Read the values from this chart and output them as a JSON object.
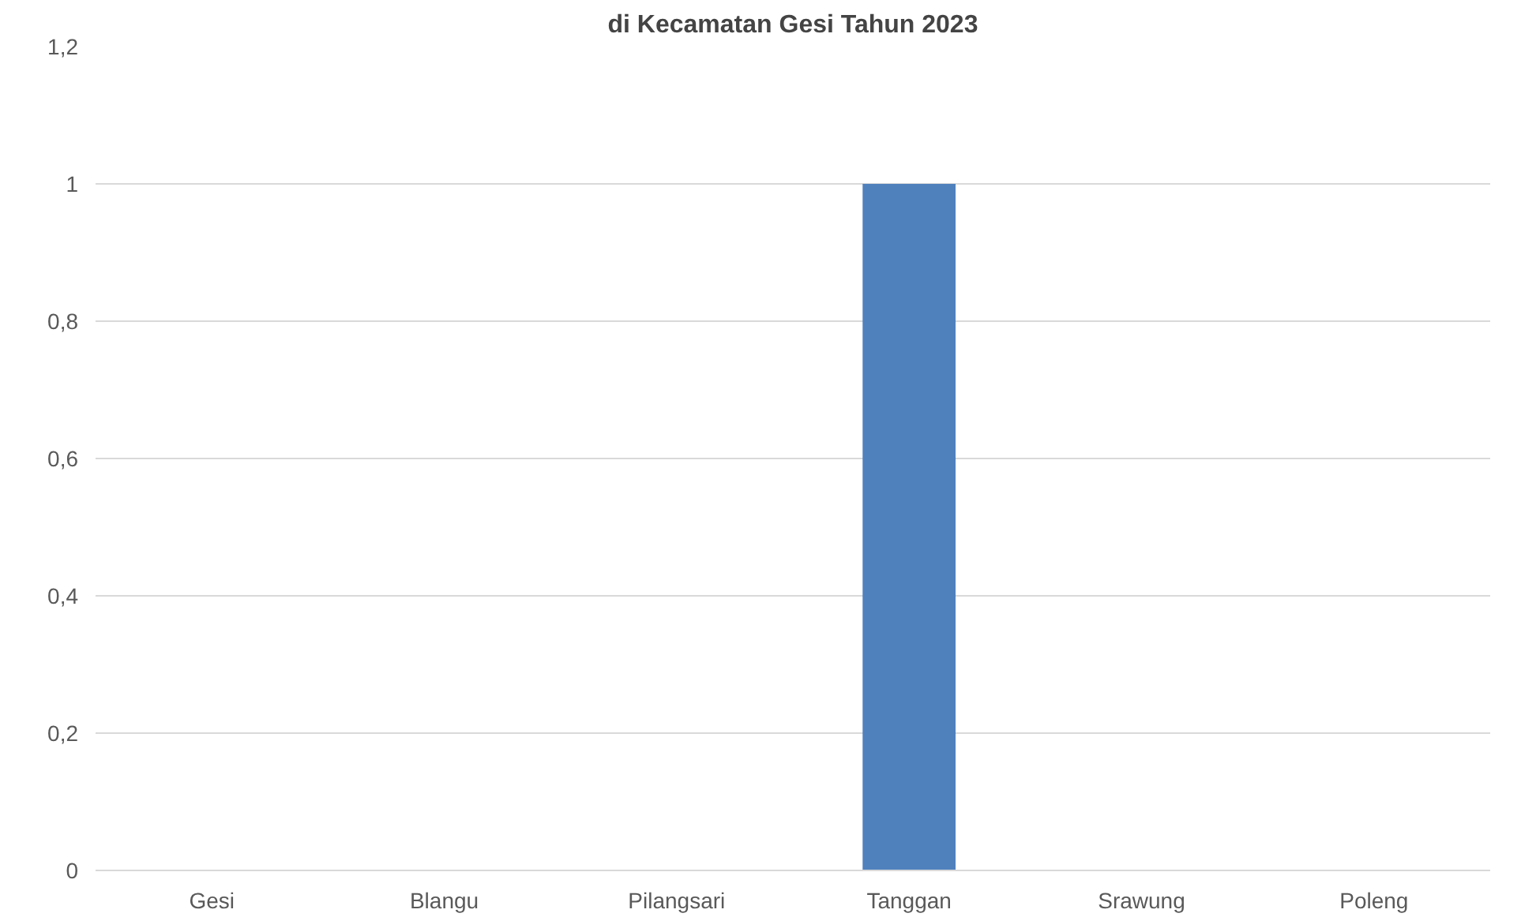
{
  "chart_data": {
    "type": "bar",
    "title": "di Kecamatan Gesi Tahun 2023",
    "categories": [
      "Gesi",
      "Blangu",
      "Pilangsari",
      "Tanggan",
      "Srawung",
      "Poleng"
    ],
    "values": [
      0,
      0,
      0,
      1,
      0,
      0
    ],
    "color": "#4f81bd",
    "ylim": [
      0,
      1.2
    ],
    "yticks": [
      0,
      {
        "value": 0.2,
        "label": "0,2"
      },
      {
        "value": 0.4,
        "label": "0,4"
      },
      {
        "value": 0.6,
        "label": "0,6"
      },
      {
        "value": 0.8,
        "label": "0,8"
      },
      1,
      {
        "value": 1.2,
        "label": "1,2"
      }
    ],
    "grid": "y"
  }
}
